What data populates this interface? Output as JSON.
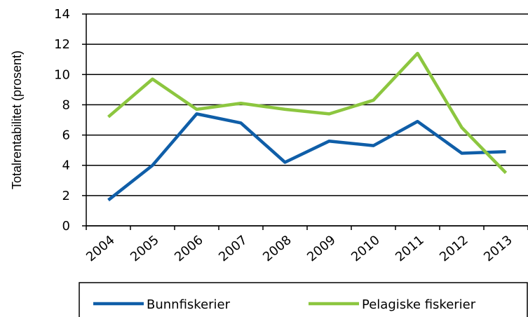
{
  "chart_data": {
    "type": "line",
    "y_label": "Totalrentabilitet (prosent)",
    "categories": [
      "2004",
      "2005",
      "2006",
      "2007",
      "2008",
      "2009",
      "2010",
      "2011",
      "2012",
      "2013"
    ],
    "series": [
      {
        "name": "Bunnfiskerier",
        "color": "#0f5ea8",
        "values": [
          1.7,
          4.0,
          7.4,
          6.8,
          4.2,
          5.6,
          5.3,
          6.9,
          4.8,
          4.9
        ]
      },
      {
        "name": "Pelagiske fiskerier",
        "color": "#8cc63f",
        "values": [
          7.2,
          9.7,
          7.7,
          8.1,
          7.7,
          7.4,
          8.3,
          11.4,
          6.5,
          3.5
        ]
      }
    ],
    "ylim": [
      0,
      14
    ],
    "yticks": [
      0,
      2,
      4,
      6,
      8,
      10,
      12,
      14
    ],
    "grid": true,
    "legend": "bottom"
  }
}
